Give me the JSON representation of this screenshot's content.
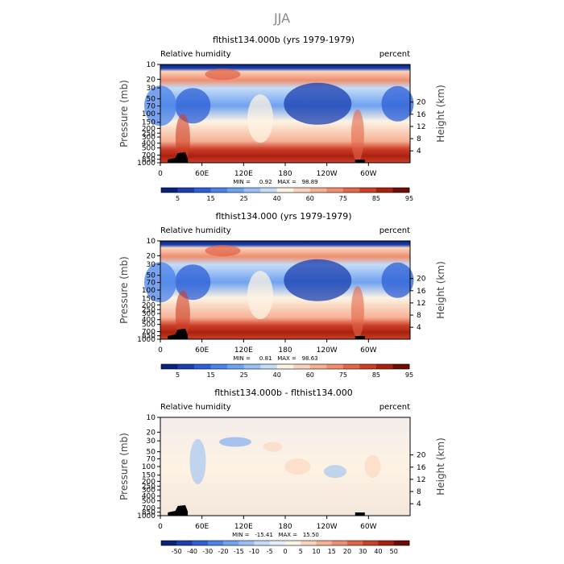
{
  "figure": {
    "title": "JJA"
  },
  "colors": {
    "rh_levels": [
      "#08247a",
      "#1a3fb0",
      "#2d5fd6",
      "#4b83e8",
      "#6fa2f0",
      "#99bff5",
      "#c4dcf8",
      "#fdf3e3",
      "#fbd3bd",
      "#f6b195",
      "#ef8e6e",
      "#e2664a",
      "#cd3f28",
      "#a9210f",
      "#6e0d07"
    ],
    "diff_levels": [
      "#08247a",
      "#1a3fb0",
      "#2d5fd6",
      "#4b83e8",
      "#6fa2f0",
      "#99bff5",
      "#c4dcf8",
      "#e3eefc",
      "#fdf3e3",
      "#fbd3bd",
      "#f6b195",
      "#ef8e6e",
      "#e2664a",
      "#cd3f28",
      "#a9210f",
      "#6e0d07"
    ],
    "terrain": "#000000"
  },
  "chart_data": [
    {
      "type": "heatmap",
      "title": "flthist134.000b (yrs 1979-1979)",
      "left_label": "Relative humidity",
      "right_label": "percent",
      "ylabel": "Pressure (mb)",
      "y2label": "Height (km)",
      "x_ticks": [
        "0",
        "60E",
        "120E",
        "180",
        "120W",
        "60W"
      ],
      "y_ticks": [
        "1000",
        "850",
        "700",
        "500",
        "400",
        "300",
        "250",
        "200",
        "150",
        "100",
        "70",
        "50",
        "30",
        "20",
        "10"
      ],
      "y2_ticks": [
        "20",
        "16",
        "12",
        "8",
        "4"
      ],
      "stats": "MIN =     0.92   MAX =   98.89",
      "colorbar_labels": [
        "5",
        "15",
        "25",
        "40",
        "60",
        "75",
        "85",
        "95"
      ]
    },
    {
      "type": "heatmap",
      "title": "flthist134.000 (yrs 1979-1979)",
      "left_label": "Relative humidity",
      "right_label": "percent",
      "ylabel": "Pressure (mb)",
      "y2label": "Height (km)",
      "x_ticks": [
        "0",
        "60E",
        "120E",
        "180",
        "120W",
        "60W"
      ],
      "y_ticks": [
        "1000",
        "850",
        "700",
        "500",
        "400",
        "300",
        "250",
        "200",
        "150",
        "100",
        "70",
        "50",
        "30",
        "20",
        "10"
      ],
      "y2_ticks": [
        "20",
        "16",
        "12",
        "8",
        "4"
      ],
      "stats": "MIN =     0.81   MAX =   98.63",
      "colorbar_labels": [
        "5",
        "15",
        "25",
        "40",
        "60",
        "75",
        "85",
        "95"
      ]
    },
    {
      "type": "heatmap",
      "title": "flthist134.000b - flthist134.000",
      "left_label": "Relative humidity",
      "right_label": "percent",
      "ylabel": "Pressure (mb)",
      "y2label": "Height (km)",
      "x_ticks": [
        "0",
        "60E",
        "120E",
        "180",
        "120W",
        "60W"
      ],
      "y_ticks": [
        "1000",
        "850",
        "700",
        "500",
        "400",
        "300",
        "250",
        "200",
        "150",
        "100",
        "70",
        "50",
        "30",
        "20",
        "10"
      ],
      "y2_ticks": [
        "20",
        "16",
        "12",
        "8",
        "4"
      ],
      "stats": "MIN =   -15.41   MAX =   15.50",
      "colorbar_labels": [
        "-50",
        "-40",
        "-30",
        "-20",
        "-15",
        "-10",
        "-5",
        "0",
        "5",
        "10",
        "15",
        "20",
        "30",
        "40",
        "50"
      ]
    }
  ]
}
